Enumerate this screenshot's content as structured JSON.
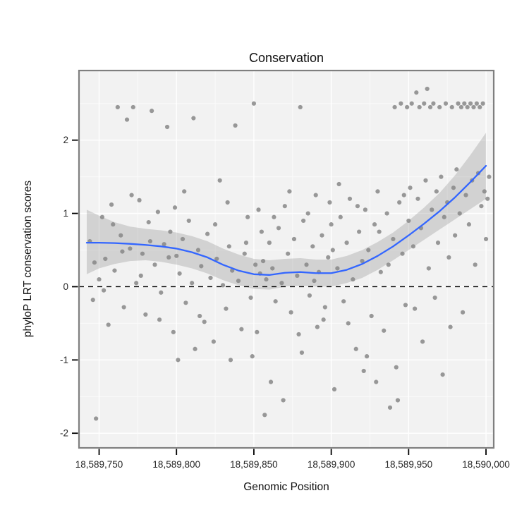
{
  "chart_data": {
    "type": "scatter",
    "title": "Conservation",
    "xlabel": "Genomic Position",
    "ylabel": "phyloP LRT conservation scores",
    "xlim": [
      18589737,
      18590005
    ],
    "ylim": [
      -2.2,
      2.95
    ],
    "x_ticks": [
      18589750,
      18589800,
      18589850,
      18589900,
      18589950,
      18590000
    ],
    "x_tick_labels": [
      "18,589,750",
      "18,589,800",
      "18,589,850",
      "18,589,900",
      "18,589,950",
      "18,590,000"
    ],
    "y_ticks": [
      -2,
      -1,
      0,
      1,
      2
    ],
    "y_tick_labels": [
      "-2",
      "-1",
      "0",
      "1",
      "2"
    ],
    "grid": true,
    "legend": "none",
    "reference_line_y": 0,
    "colors": {
      "point": "#878787",
      "smooth": "#3366FF",
      "ribbon": "#999999",
      "panel": "#f2f2f2",
      "grid_major": "#ffffff",
      "grid_minor": "#fafafa",
      "border": "#7f7f7f",
      "reference": "#000000",
      "tick": "#000000"
    },
    "points": [
      [
        18589744,
        0.62
      ],
      [
        18589746,
        -0.18
      ],
      [
        18589747,
        0.33
      ],
      [
        18589748,
        -1.8
      ],
      [
        18589750,
        0.1
      ],
      [
        18589752,
        0.95
      ],
      [
        18589753,
        -0.05
      ],
      [
        18589754,
        0.38
      ],
      [
        18589756,
        -0.52
      ],
      [
        18589758,
        1.12
      ],
      [
        18589759,
        0.85
      ],
      [
        18589760,
        0.22
      ],
      [
        18589762,
        2.45
      ],
      [
        18589764,
        0.7
      ],
      [
        18589765,
        0.48
      ],
      [
        18589766,
        -0.28
      ],
      [
        18589768,
        2.28
      ],
      [
        18589770,
        0.52
      ],
      [
        18589771,
        1.25
      ],
      [
        18589772,
        2.45
      ],
      [
        18589774,
        0.05
      ],
      [
        18589776,
        1.18
      ],
      [
        18589777,
        0.15
      ],
      [
        18589778,
        0.45
      ],
      [
        18589780,
        -0.38
      ],
      [
        18589782,
        0.88
      ],
      [
        18589783,
        0.62
      ],
      [
        18589784,
        2.4
      ],
      [
        18589786,
        0.3
      ],
      [
        18589788,
        1.02
      ],
      [
        18589789,
        -0.45
      ],
      [
        18589790,
        -0.08
      ],
      [
        18589792,
        0.58
      ],
      [
        18589794,
        2.18
      ],
      [
        18589795,
        0.4
      ],
      [
        18589796,
        0.75
      ],
      [
        18589798,
        -0.62
      ],
      [
        18589799,
        1.08
      ],
      [
        18589800,
        0.42
      ],
      [
        18589801,
        -1.0
      ],
      [
        18589802,
        0.18
      ],
      [
        18589804,
        0.65
      ],
      [
        18589805,
        1.3
      ],
      [
        18589806,
        -0.22
      ],
      [
        18589808,
        0.9
      ],
      [
        18589810,
        0.05
      ],
      [
        18589811,
        2.3
      ],
      [
        18589812,
        -0.85
      ],
      [
        18589814,
        0.5
      ],
      [
        18589815,
        -0.4
      ],
      [
        18589816,
        0.28
      ],
      [
        18589818,
        -0.48
      ],
      [
        18589820,
        0.72
      ],
      [
        18589822,
        0.12
      ],
      [
        18589824,
        -0.75
      ],
      [
        18589825,
        0.85
      ],
      [
        18589826,
        0.38
      ],
      [
        18589828,
        1.45
      ],
      [
        18589830,
        0.02
      ],
      [
        18589832,
        -0.3
      ],
      [
        18589833,
        1.15
      ],
      [
        18589834,
        0.55
      ],
      [
        18589835,
        -1.0
      ],
      [
        18589836,
        0.22
      ],
      [
        18589838,
        2.2
      ],
      [
        18589840,
        0.08
      ],
      [
        18589842,
        -0.58
      ],
      [
        18589844,
        0.45
      ],
      [
        18589845,
        0.6
      ],
      [
        18589846,
        0.95
      ],
      [
        18589848,
        -0.15
      ],
      [
        18589849,
        -0.95
      ],
      [
        18589850,
        2.5
      ],
      [
        18589851,
        0.3
      ],
      [
        18589852,
        -0.62
      ],
      [
        18589853,
        1.05
      ],
      [
        18589854,
        0.18
      ],
      [
        18589855,
        0.75
      ],
      [
        18589856,
        0.35
      ],
      [
        18589857,
        -1.75
      ],
      [
        18589858,
        0.1
      ],
      [
        18589860,
        0.6
      ],
      [
        18589861,
        -1.3
      ],
      [
        18589862,
        0.25
      ],
      [
        18589863,
        0.95
      ],
      [
        18589864,
        -0.2
      ],
      [
        18589866,
        0.8
      ],
      [
        18589868,
        0.05
      ],
      [
        18589869,
        -1.55
      ],
      [
        18589870,
        1.1
      ],
      [
        18589872,
        0.45
      ],
      [
        18589873,
        1.3
      ],
      [
        18589874,
        -0.35
      ],
      [
        18589876,
        0.65
      ],
      [
        18589878,
        0.15
      ],
      [
        18589879,
        -0.65
      ],
      [
        18589880,
        2.45
      ],
      [
        18589881,
        -0.9
      ],
      [
        18589882,
        0.9
      ],
      [
        18589884,
        0.3
      ],
      [
        18589885,
        1.0
      ],
      [
        18589886,
        -0.12
      ],
      [
        18589888,
        0.55
      ],
      [
        18589889,
        0.08
      ],
      [
        18589890,
        1.25
      ],
      [
        18589891,
        -0.55
      ],
      [
        18589892,
        0.2
      ],
      [
        18589894,
        0.7
      ],
      [
        18589895,
        -0.45
      ],
      [
        18589896,
        -0.28
      ],
      [
        18589898,
        0.4
      ],
      [
        18589899,
        1.15
      ],
      [
        18589900,
        0.85
      ],
      [
        18589901,
        0.5
      ],
      [
        18589902,
        -1.4
      ],
      [
        18589904,
        0.25
      ],
      [
        18589905,
        1.4
      ],
      [
        18589906,
        0.95
      ],
      [
        18589908,
        -0.2
      ],
      [
        18589910,
        0.6
      ],
      [
        18589911,
        -0.5
      ],
      [
        18589912,
        1.2
      ],
      [
        18589914,
        0.1
      ],
      [
        18589916,
        -0.85
      ],
      [
        18589917,
        1.1
      ],
      [
        18589918,
        0.75
      ],
      [
        18589920,
        0.35
      ],
      [
        18589921,
        -1.15
      ],
      [
        18589922,
        1.05
      ],
      [
        18589923,
        -0.95
      ],
      [
        18589924,
        0.5
      ],
      [
        18589926,
        -0.4
      ],
      [
        18589928,
        0.85
      ],
      [
        18589929,
        -1.3
      ],
      [
        18589930,
        1.3
      ],
      [
        18589931,
        0.75
      ],
      [
        18589932,
        0.2
      ],
      [
        18589934,
        -0.6
      ],
      [
        18589936,
        1.0
      ],
      [
        18589937,
        0.3
      ],
      [
        18589938,
        -1.65
      ],
      [
        18589940,
        0.65
      ],
      [
        18589941,
        2.45
      ],
      [
        18589942,
        -1.1
      ],
      [
        18589943,
        -1.55
      ],
      [
        18589944,
        1.15
      ],
      [
        18589945,
        2.5
      ],
      [
        18589946,
        0.45
      ],
      [
        18589947,
        1.25
      ],
      [
        18589948,
        -0.25
      ],
      [
        18589949,
        2.45
      ],
      [
        18589950,
        0.9
      ],
      [
        18589951,
        1.35
      ],
      [
        18589952,
        2.5
      ],
      [
        18589953,
        0.55
      ],
      [
        18589954,
        -0.3
      ],
      [
        18589955,
        2.65
      ],
      [
        18589956,
        1.2
      ],
      [
        18589957,
        2.45
      ],
      [
        18589958,
        0.8
      ],
      [
        18589959,
        -0.75
      ],
      [
        18589960,
        2.5
      ],
      [
        18589961,
        1.45
      ],
      [
        18589962,
        2.7
      ],
      [
        18589963,
        0.25
      ],
      [
        18589964,
        2.45
      ],
      [
        18589965,
        1.05
      ],
      [
        18589966,
        2.5
      ],
      [
        18589967,
        -0.15
      ],
      [
        18589968,
        1.3
      ],
      [
        18589969,
        0.6
      ],
      [
        18589970,
        2.45
      ],
      [
        18589971,
        1.5
      ],
      [
        18589972,
        -1.2
      ],
      [
        18589973,
        0.95
      ],
      [
        18589974,
        2.5
      ],
      [
        18589975,
        1.15
      ],
      [
        18589976,
        0.4
      ],
      [
        18589977,
        -0.55
      ],
      [
        18589978,
        2.45
      ],
      [
        18589979,
        1.35
      ],
      [
        18589980,
        0.7
      ],
      [
        18589981,
        1.6
      ],
      [
        18589982,
        2.5
      ],
      [
        18589983,
        1.0
      ],
      [
        18589984,
        2.45
      ],
      [
        18589985,
        -0.35
      ],
      [
        18589986,
        2.5
      ],
      [
        18589987,
        1.25
      ],
      [
        18589988,
        2.45
      ],
      [
        18589989,
        0.85
      ],
      [
        18589990,
        2.5
      ],
      [
        18589991,
        1.45
      ],
      [
        18589992,
        2.45
      ],
      [
        18589993,
        0.3
      ],
      [
        18589994,
        2.5
      ],
      [
        18589995,
        1.55
      ],
      [
        18589996,
        2.45
      ],
      [
        18589997,
        1.1
      ],
      [
        18589998,
        2.5
      ],
      [
        18589999,
        1.3
      ],
      [
        18590000,
        0.65
      ],
      [
        18590001,
        1.2
      ],
      [
        18590002,
        1.5
      ]
    ],
    "smooth": {
      "x": [
        18589742,
        18589750,
        18589760,
        18589770,
        18589780,
        18589790,
        18589800,
        18589810,
        18589820,
        18589830,
        18589840,
        18589850,
        18589860,
        18589870,
        18589880,
        18589890,
        18589900,
        18589910,
        18589920,
        18589930,
        18589940,
        18589950,
        18589960,
        18589970,
        18589980,
        18589990,
        18590000
      ],
      "y": [
        0.6,
        0.6,
        0.595,
        0.585,
        0.57,
        0.55,
        0.52,
        0.47,
        0.4,
        0.3,
        0.22,
        0.17,
        0.16,
        0.19,
        0.2,
        0.185,
        0.185,
        0.23,
        0.31,
        0.42,
        0.55,
        0.7,
        0.86,
        1.03,
        1.22,
        1.43,
        1.65
      ],
      "upper": [
        1.05,
        0.97,
        0.88,
        0.82,
        0.79,
        0.77,
        0.74,
        0.69,
        0.62,
        0.52,
        0.44,
        0.38,
        0.36,
        0.38,
        0.39,
        0.37,
        0.37,
        0.42,
        0.5,
        0.61,
        0.74,
        0.9,
        1.08,
        1.28,
        1.52,
        1.8,
        2.1
      ],
      "lower": [
        0.17,
        0.25,
        0.31,
        0.35,
        0.36,
        0.34,
        0.3,
        0.25,
        0.18,
        0.09,
        0.02,
        -0.03,
        -0.04,
        0.0,
        0.01,
        0.0,
        0.0,
        0.05,
        0.12,
        0.23,
        0.36,
        0.5,
        0.64,
        0.78,
        0.92,
        1.06,
        1.2
      ]
    }
  }
}
